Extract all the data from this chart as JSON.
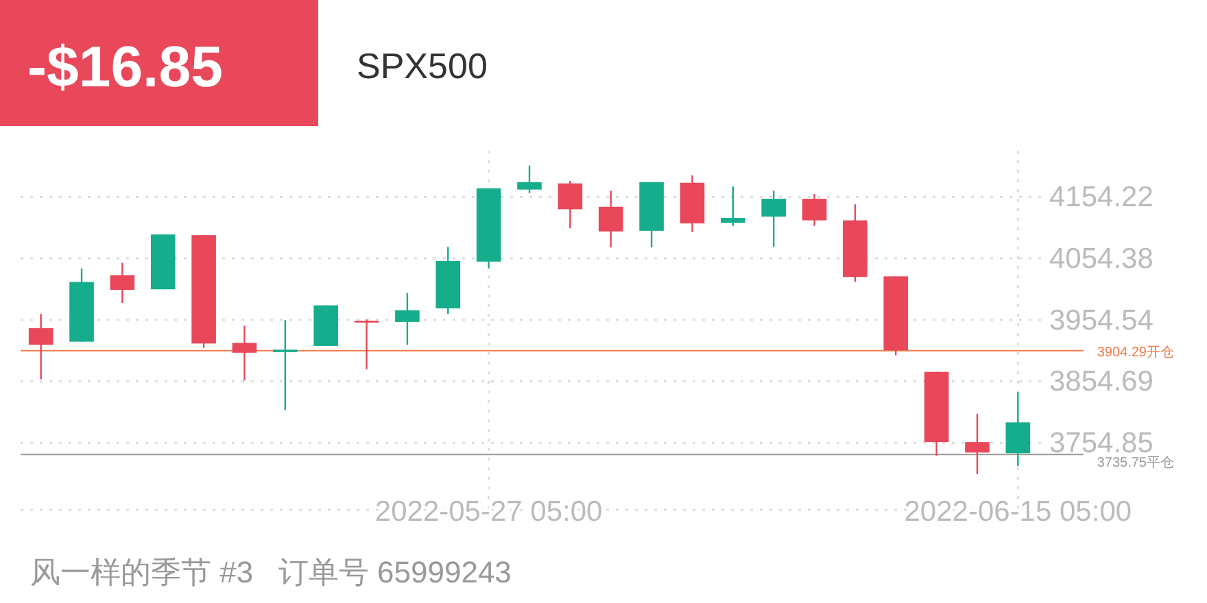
{
  "chart_data": {
    "type": "candlestick",
    "title": "SPX500",
    "subtitle": "-$16.85",
    "categories": [
      null,
      null,
      null,
      null,
      null,
      null,
      null,
      null,
      null,
      null,
      null,
      "2022-05-27 05:00",
      null,
      null,
      null,
      null,
      null,
      null,
      null,
      null,
      null,
      null,
      null,
      null,
      "2022-06-15 05:00"
    ],
    "ohlc": [
      [
        3941,
        3964,
        3858,
        3914
      ],
      [
        3919,
        4038,
        3919,
        4016
      ],
      [
        4027,
        4047,
        3982,
        4003
      ],
      [
        4004,
        4093,
        4004,
        4093
      ],
      [
        4092,
        4092,
        3909,
        3916
      ],
      [
        3917,
        3945,
        3856,
        3901
      ],
      [
        3902,
        3954,
        3808,
        3906
      ],
      [
        3912,
        3978,
        3912,
        3978
      ],
      [
        3953,
        3955,
        3874,
        3950
      ],
      [
        3951,
        3998,
        3914,
        3970
      ],
      [
        3973,
        4073,
        3964,
        4050
      ],
      [
        4049,
        4168,
        4038,
        4168
      ],
      [
        4166,
        4205,
        4160,
        4178
      ],
      [
        4176,
        4180,
        4103,
        4134
      ],
      [
        4138,
        4164,
        4072,
        4098
      ],
      [
        4099,
        4178,
        4072,
        4178
      ],
      [
        4177,
        4189,
        4097,
        4111
      ],
      [
        4112,
        4171,
        4107,
        4120
      ],
      [
        4122,
        4164,
        4073,
        4151
      ],
      [
        4151,
        4159,
        4107,
        4116
      ],
      [
        4116,
        4142,
        4016,
        4024
      ],
      [
        4025,
        4025,
        3897,
        3905
      ],
      [
        3870,
        3870,
        3734,
        3756
      ],
      [
        3756,
        3802,
        3704,
        3739
      ],
      [
        3738,
        3837,
        3717,
        3788
      ]
    ],
    "colors": [
      "#e8485a",
      "#16ad8c",
      "#e8485a",
      "#16ad8c",
      "#e8485a",
      "#e8485a",
      "#16ad8c",
      "#16ad8c",
      "#e8485a",
      "#16ad8c",
      "#16ad8c",
      "#16ad8c",
      "#16ad8c",
      "#e8485a",
      "#e8485a",
      "#16ad8c",
      "#e8485a",
      "#16ad8c",
      "#16ad8c",
      "#e8485a",
      "#e8485a",
      "#e8485a",
      "#e8485a",
      "#e8485a",
      "#16ad8c"
    ],
    "ylim": [
      3646,
      4229
    ],
    "yticks": [
      4154.22,
      4054.38,
      3954.54,
      3854.69,
      3754.85
    ],
    "grid": true,
    "ref_lines": [
      {
        "axis": "y",
        "value": 3904.29,
        "label": "3904.29开仓",
        "color": "#f07a4a"
      },
      {
        "axis": "y",
        "value": 3735.75,
        "label": "3735.75平仓",
        "color": "#999999"
      }
    ],
    "annotations": [
      "风一样的季节 #3   订单号 65999243"
    ]
  }
}
